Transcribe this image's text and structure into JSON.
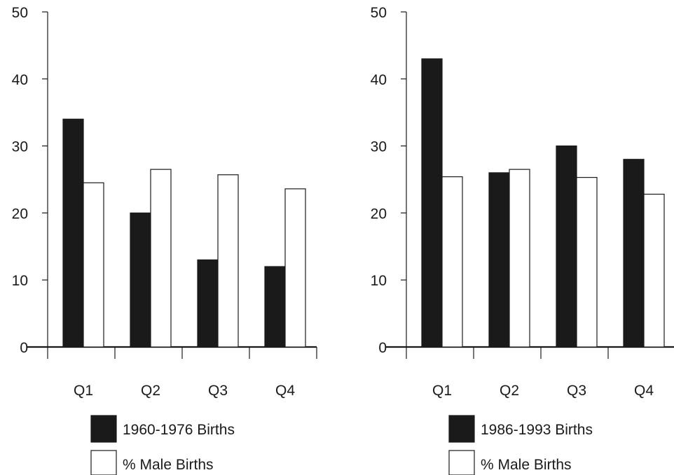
{
  "chart_data": [
    {
      "type": "bar",
      "title": "",
      "xlabel": "",
      "ylabel": "",
      "ylim": [
        0,
        50
      ],
      "yticks": [
        0,
        10,
        20,
        30,
        40,
        50
      ],
      "grid": false,
      "legend_position": "bottom",
      "categories": [
        "Q1",
        "Q2",
        "Q3",
        "Q4"
      ],
      "series": [
        {
          "name": "1960-1976 Births",
          "fill": "#1a1a1a",
          "values": [
            34,
            20,
            13,
            12
          ]
        },
        {
          "name": "% Male Births",
          "fill": "#ffffff",
          "values": [
            24.5,
            26.5,
            25.7,
            23.6
          ]
        }
      ]
    },
    {
      "type": "bar",
      "title": "",
      "xlabel": "",
      "ylabel": "",
      "ylim": [
        0,
        50
      ],
      "yticks": [
        0,
        10,
        20,
        30,
        40,
        50
      ],
      "grid": false,
      "legend_position": "bottom",
      "categories": [
        "Q1",
        "Q2",
        "Q3",
        "Q4"
      ],
      "series": [
        {
          "name": "1986-1993 Births",
          "fill": "#1a1a1a",
          "values": [
            43,
            26,
            30,
            28
          ]
        },
        {
          "name": "% Male Births",
          "fill": "#ffffff",
          "values": [
            25.4,
            26.5,
            25.3,
            22.8
          ]
        }
      ]
    }
  ]
}
